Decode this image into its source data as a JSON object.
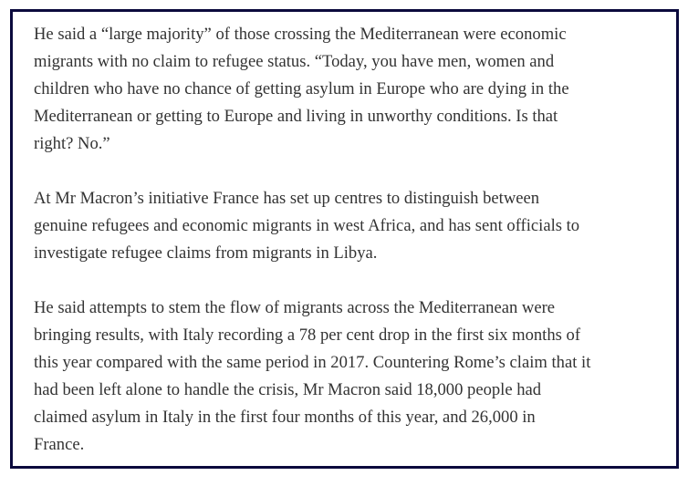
{
  "article": {
    "paragraphs": [
      {
        "lines": [
          "He said a “large majority” of those crossing the Mediterranean were economic",
          "migrants with no claim to refugee status. “Today, you have men, women and",
          "children who have no chance of getting asylum in Europe who are dying in the",
          "Mediterranean or getting to Europe and living in unworthy conditions. Is that",
          "right? No.”"
        ]
      },
      {
        "lines": [
          "At Mr Macron’s initiative France has set up centres to distinguish between",
          "genuine refugees and economic migrants in west Africa, and has sent officials to",
          "investigate refugee claims from migrants in Libya."
        ]
      },
      {
        "lines": [
          "He said attempts to stem the flow of migrants across the Mediterranean were",
          "bringing results, with Italy recording a 78 per cent drop in the first six months of",
          "this year compared with the same period in 2017. Countering Rome’s claim that it",
          "had been left alone to handle the crisis, Mr Macron said 18,000 people had",
          "claimed asylum in Italy in the first four months of this year, and 26,000 in",
          "France."
        ]
      }
    ]
  },
  "colors": {
    "border": "#0b0a3d",
    "text": "#333333"
  }
}
